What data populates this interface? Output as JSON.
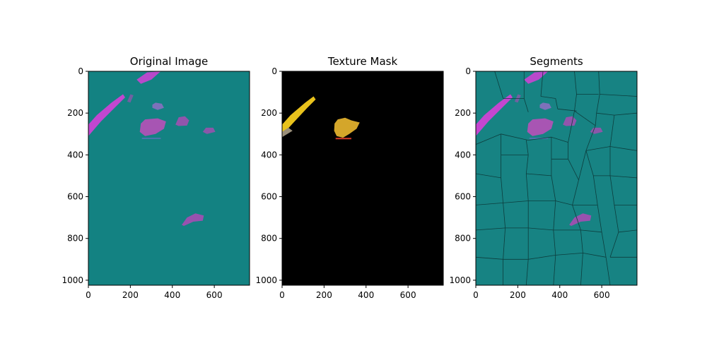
{
  "chart_data": [
    {
      "type": "image",
      "title": "Original Image",
      "xlabel": "",
      "ylabel": "",
      "xlim": [
        0,
        768
      ],
      "ylim": [
        1024,
        0
      ],
      "x_ticks": [
        0,
        200,
        400,
        600
      ],
      "y_ticks": [
        0,
        200,
        400,
        600,
        800,
        1000
      ],
      "grid": false,
      "colors": {
        "background": "#138282",
        "blob": "#c040c0",
        "blob_edge": "#8a5aa6",
        "stripe": "#d63fd8"
      }
    },
    {
      "type": "image",
      "title": "Texture Mask",
      "xlabel": "",
      "ylabel": "",
      "xlim": [
        0,
        768
      ],
      "ylim": [
        1024,
        0
      ],
      "x_ticks": [
        0,
        200,
        400,
        600
      ],
      "y_ticks": [
        0,
        200,
        400,
        600,
        800,
        1000
      ],
      "grid": false,
      "colors": {
        "background": "#000000",
        "stripe": "#e9c21c",
        "blob": "#d4a62a",
        "edge": "#d63a2a"
      }
    },
    {
      "type": "image",
      "title": "Segments",
      "xlabel": "",
      "ylabel": "",
      "xlim": [
        0,
        768
      ],
      "ylim": [
        1024,
        0
      ],
      "x_ticks": [
        0,
        200,
        400,
        600
      ],
      "y_ticks": [
        0,
        200,
        400,
        600,
        800,
        1000
      ],
      "grid": false,
      "colors": {
        "background": "#178383",
        "boundary": "#0d3d3d",
        "blob": "#c040c0",
        "stripe": "#d63fd8"
      }
    }
  ]
}
